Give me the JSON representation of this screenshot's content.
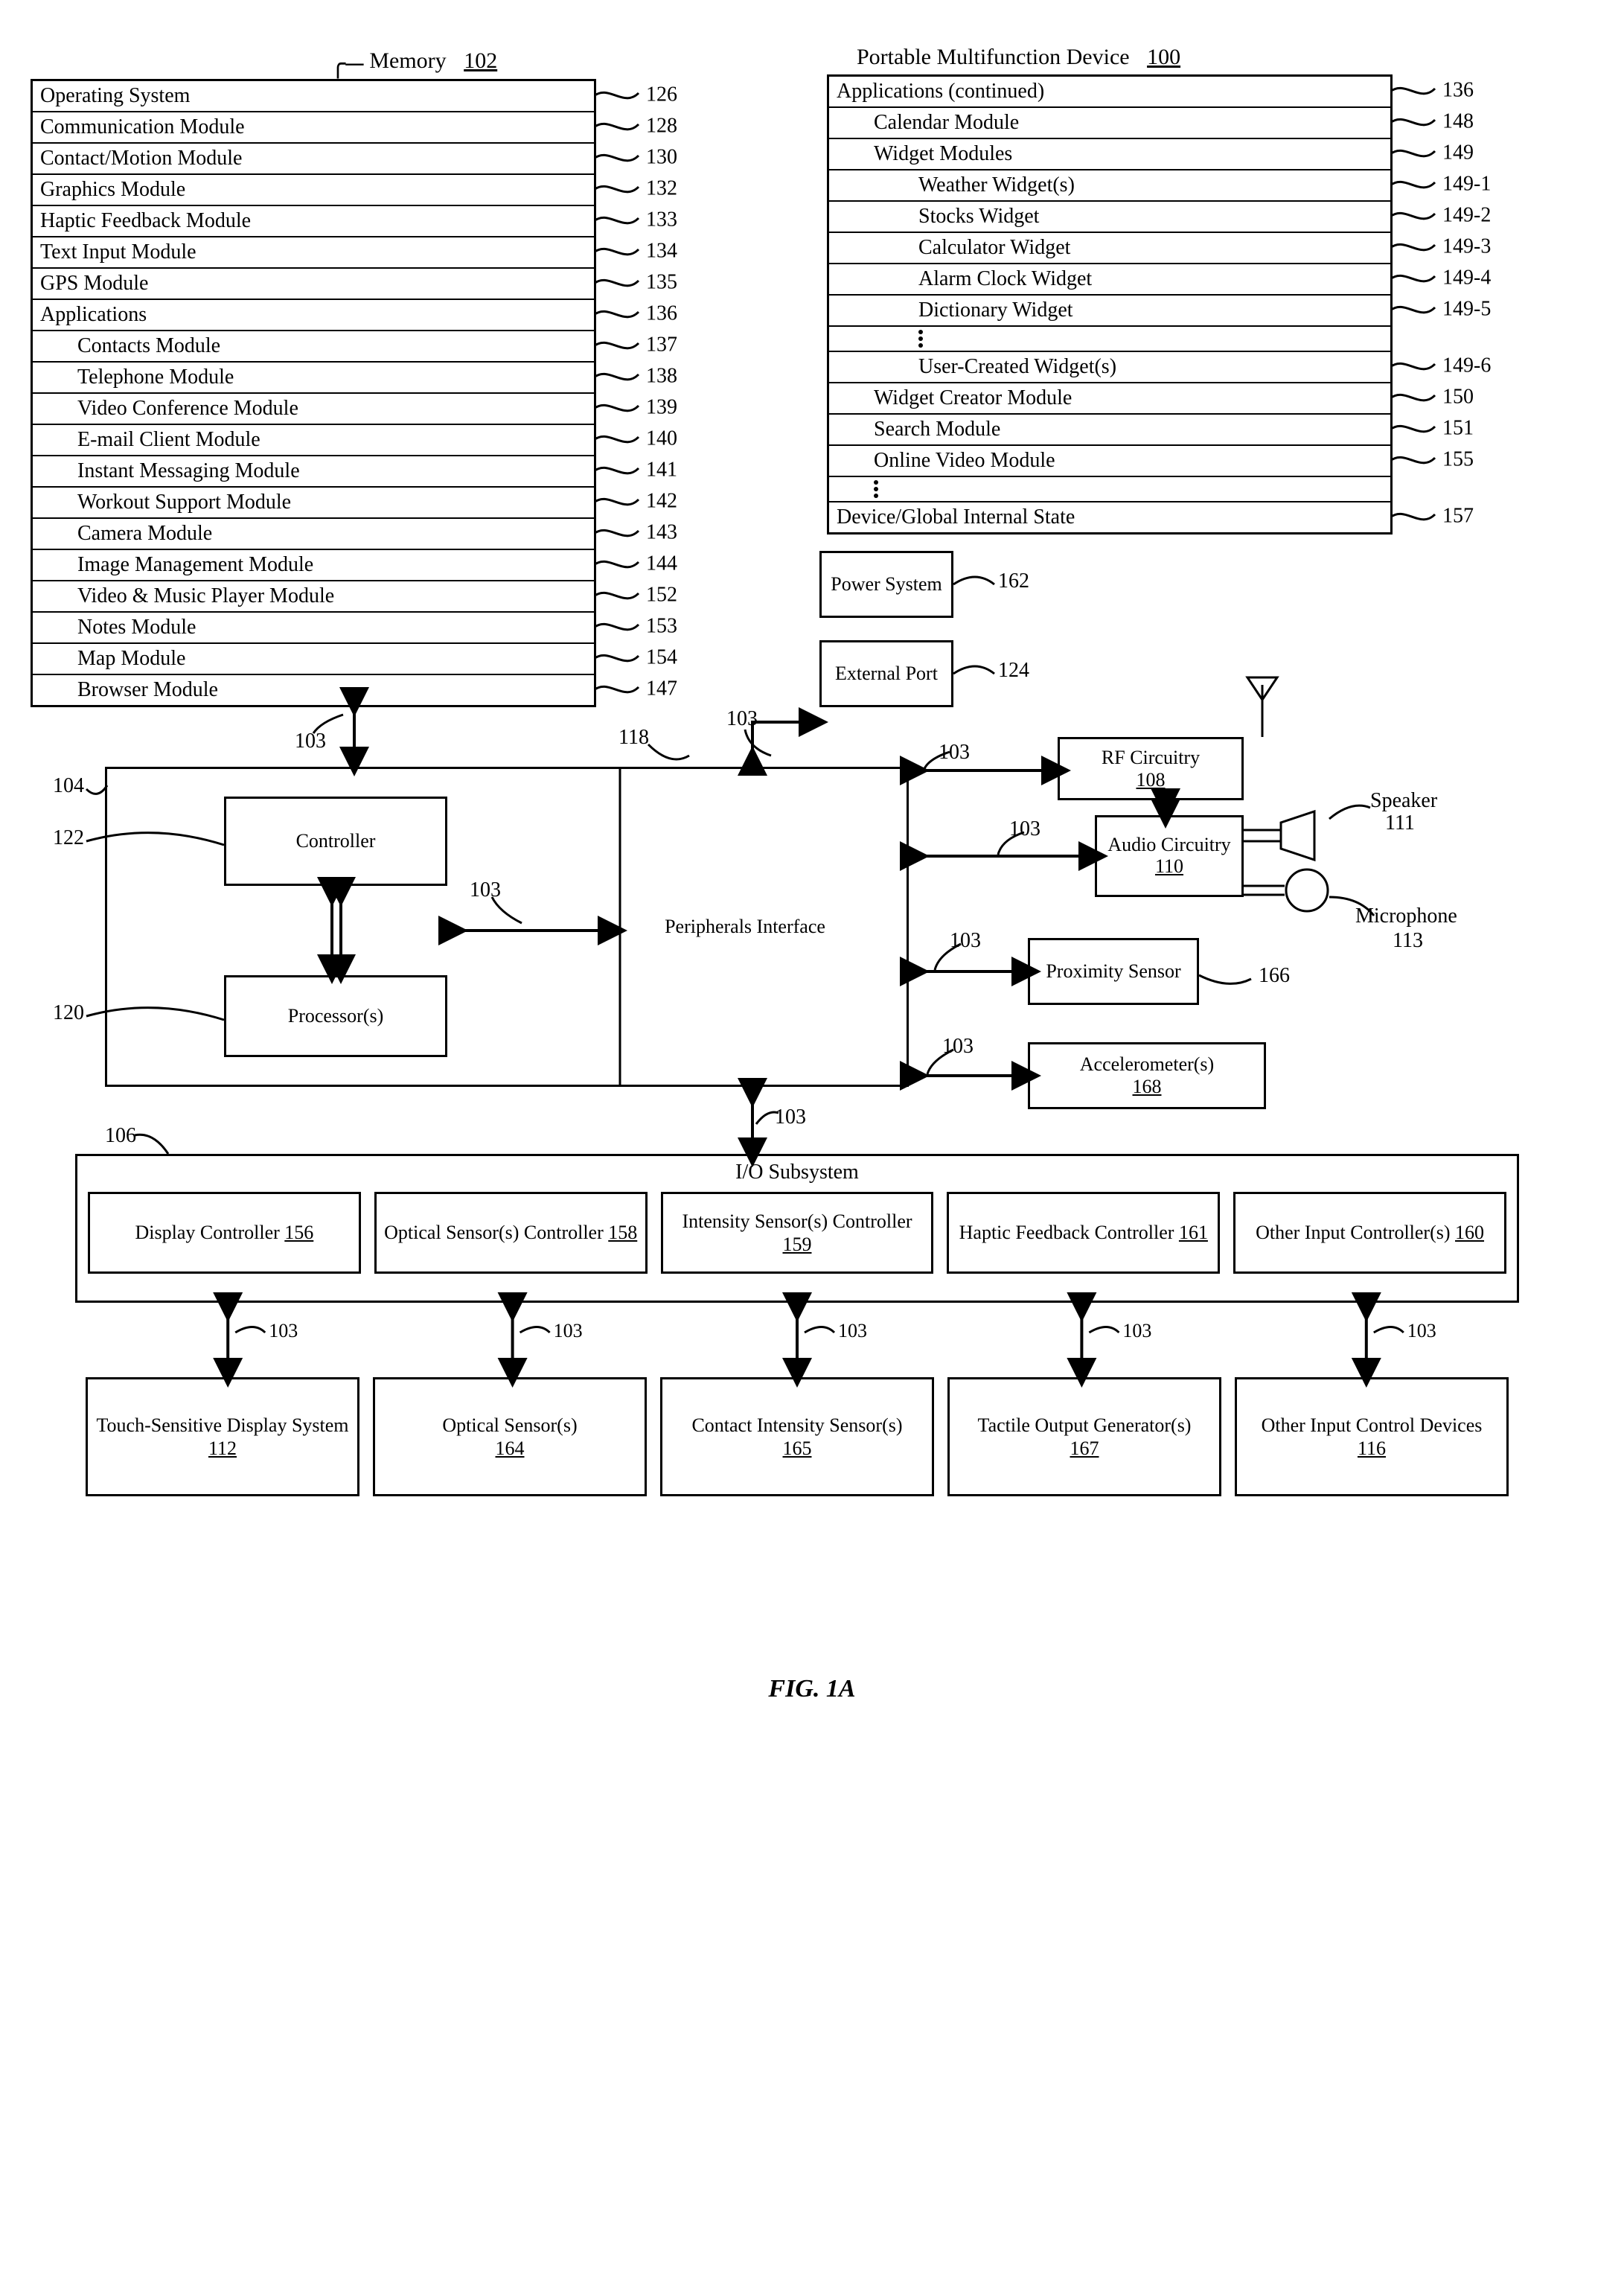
{
  "figure_caption": "FIG. 1A",
  "device_title": "Portable Multifunction Device",
  "device_ref": "100",
  "memory_title": "Memory",
  "memory_ref": "102",
  "left_rows": [
    {
      "label": "Operating System",
      "ref": "126",
      "indent": 0
    },
    {
      "label": "Communication Module",
      "ref": "128",
      "indent": 0
    },
    {
      "label": "Contact/Motion Module",
      "ref": "130",
      "indent": 0
    },
    {
      "label": "Graphics Module",
      "ref": "132",
      "indent": 0
    },
    {
      "label": "Haptic Feedback Module",
      "ref": "133",
      "indent": 0
    },
    {
      "label": "Text Input Module",
      "ref": "134",
      "indent": 0
    },
    {
      "label": "GPS Module",
      "ref": "135",
      "indent": 0
    },
    {
      "label": "Applications",
      "ref": "136",
      "indent": 0
    },
    {
      "label": "Contacts Module",
      "ref": "137",
      "indent": 1
    },
    {
      "label": "Telephone Module",
      "ref": "138",
      "indent": 1
    },
    {
      "label": "Video Conference Module",
      "ref": "139",
      "indent": 1
    },
    {
      "label": "E-mail Client Module",
      "ref": "140",
      "indent": 1
    },
    {
      "label": "Instant Messaging Module",
      "ref": "141",
      "indent": 1
    },
    {
      "label": "Workout Support Module",
      "ref": "142",
      "indent": 1
    },
    {
      "label": "Camera Module",
      "ref": "143",
      "indent": 1
    },
    {
      "label": "Image Management Module",
      "ref": "144",
      "indent": 1
    },
    {
      "label": "Video & Music Player Module",
      "ref": "152",
      "indent": 1
    },
    {
      "label": "Notes Module",
      "ref": "153",
      "indent": 1
    },
    {
      "label": "Map Module",
      "ref": "154",
      "indent": 1
    },
    {
      "label": "Browser Module",
      "ref": "147",
      "indent": 1
    }
  ],
  "right_rows": [
    {
      "label": "Applications (continued)",
      "ref": "136",
      "indent": 0
    },
    {
      "label": "Calendar Module",
      "ref": "148",
      "indent": 1
    },
    {
      "label": "Widget Modules",
      "ref": "149",
      "indent": 1
    },
    {
      "label": "Weather Widget(s)",
      "ref": "149-1",
      "indent": 2
    },
    {
      "label": "Stocks Widget",
      "ref": "149-2",
      "indent": 2
    },
    {
      "label": "Calculator Widget",
      "ref": "149-3",
      "indent": 2
    },
    {
      "label": "Alarm Clock Widget",
      "ref": "149-4",
      "indent": 2
    },
    {
      "label": "Dictionary Widget",
      "ref": "149-5",
      "indent": 2
    },
    {
      "label": "⋮",
      "ref": "",
      "indent": 2,
      "dots": true
    },
    {
      "label": "User-Created Widget(s)",
      "ref": "149-6",
      "indent": 2
    },
    {
      "label": "Widget Creator Module",
      "ref": "150",
      "indent": 1
    },
    {
      "label": "Search Module",
      "ref": "151",
      "indent": 1
    },
    {
      "label": "Online Video Module",
      "ref": "155",
      "indent": 1
    },
    {
      "label": "⋮",
      "ref": "",
      "indent": 1,
      "dots": true
    },
    {
      "label": "Device/Global Internal State",
      "ref": "157",
      "indent": 0
    }
  ],
  "hw": {
    "power": {
      "label": "Power System",
      "ref": "162"
    },
    "extport": {
      "label": "External Port",
      "ref": "124"
    },
    "rf": {
      "label": "RF Circuitry",
      "ref": "108"
    },
    "audio": {
      "label": "Audio Circuitry",
      "ref": "110"
    },
    "speaker": {
      "label": "Speaker",
      "ref": "111"
    },
    "mic": {
      "label": "Microphone",
      "ref": "113"
    },
    "prox": {
      "label": "Proximity Sensor",
      "ref": "166"
    },
    "accel": {
      "label": "Accelerometer(s)",
      "ref": "168"
    },
    "periph": {
      "label": "Peripherals Interface",
      "ref": "118"
    },
    "controller": {
      "label": "Controller",
      "ref": "122"
    },
    "processor": {
      "label": "Processor(s)",
      "ref": "120"
    },
    "cpu_box_ref": "104",
    "bus_ref": "103",
    "io_ref": "106",
    "io_title": "I/O Subsystem"
  },
  "io_controllers": [
    {
      "label": "Display Controller",
      "ref": "156"
    },
    {
      "label": "Optical Sensor(s) Controller",
      "ref": "158"
    },
    {
      "label": "Intensity Sensor(s) Controller",
      "ref": "159"
    },
    {
      "label": "Haptic Feedback Controller",
      "ref": "161"
    },
    {
      "label": "Other Input Controller(s)",
      "ref": "160"
    }
  ],
  "io_devices": [
    {
      "label": "Touch-Sensitive Display System",
      "ref": "112"
    },
    {
      "label": "Optical Sensor(s)",
      "ref": "164"
    },
    {
      "label": "Contact Intensity Sensor(s)",
      "ref": "165"
    },
    {
      "label": "Tactile Output Generator(s)",
      "ref": "167"
    },
    {
      "label": "Other Input Control Devices",
      "ref": "116"
    }
  ],
  "style": {
    "border_color": "#000000",
    "bg": "#ffffff",
    "font": "Times New Roman",
    "row_font_size": 28,
    "ref_font_size": 28,
    "line_width": 3
  }
}
